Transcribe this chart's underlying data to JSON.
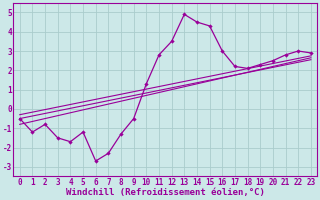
{
  "x": [
    0,
    1,
    2,
    3,
    4,
    5,
    6,
    7,
    8,
    9,
    10,
    11,
    12,
    13,
    14,
    15,
    16,
    17,
    18,
    19,
    20,
    21,
    22,
    23
  ],
  "y_main": [
    -0.5,
    -1.2,
    -0.8,
    -1.5,
    -1.7,
    -1.2,
    -2.7,
    -2.3,
    -1.3,
    -0.5,
    1.3,
    2.8,
    3.5,
    4.9,
    4.5,
    4.3,
    3.0,
    2.2,
    2.1,
    2.3,
    2.5,
    2.8,
    3.0,
    2.9
  ],
  "line1_x0": 0,
  "line1_y0": -0.5,
  "line1_x1": 23,
  "line1_y1": 2.55,
  "line2_x0": 0,
  "line2_y0": -0.8,
  "line2_x1": 23,
  "line2_y1": 2.65,
  "line3_x0": 0,
  "line3_y0": -0.3,
  "line3_x1": 23,
  "line3_y1": 2.75,
  "xlim": [
    -0.5,
    23.5
  ],
  "ylim": [
    -3.5,
    5.5
  ],
  "yticks": [
    -3,
    -2,
    -1,
    0,
    1,
    2,
    3,
    4,
    5
  ],
  "xticks": [
    0,
    1,
    2,
    3,
    4,
    5,
    6,
    7,
    8,
    9,
    10,
    11,
    12,
    13,
    14,
    15,
    16,
    17,
    18,
    19,
    20,
    21,
    22,
    23
  ],
  "color": "#990099",
  "bg_color": "#cce8e8",
  "grid_color": "#aacccc",
  "xlabel": "Windchill (Refroidissement éolien,°C)",
  "xlabel_fontsize": 6.5,
  "tick_fontsize": 5.5
}
